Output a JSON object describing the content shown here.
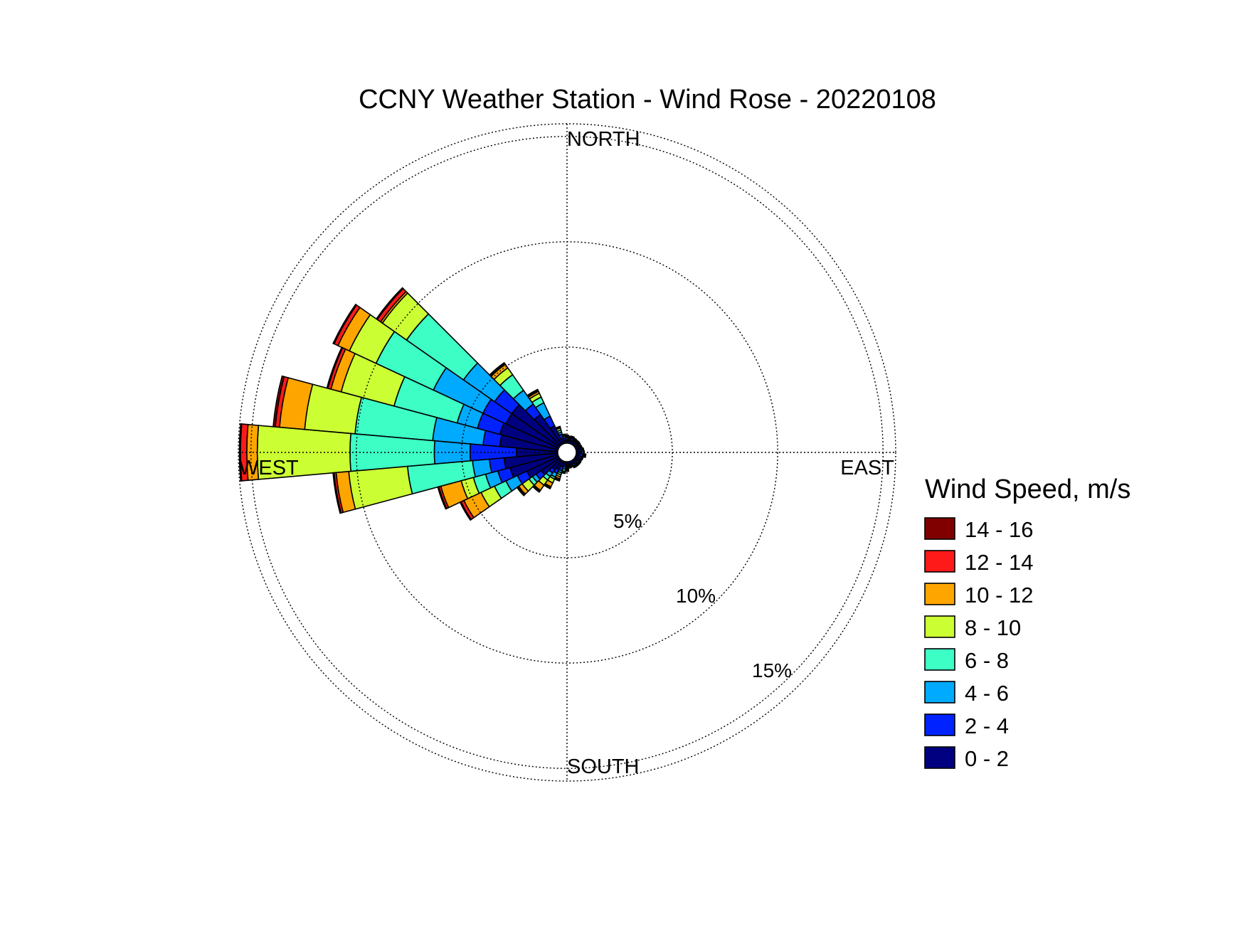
{
  "chart_data": {
    "type": "wind-rose",
    "title": "CCNY Weather Station - Wind Rose - 20220108",
    "direction_labels": {
      "north": "NORTH",
      "south": "SOUTH",
      "east": "EAST",
      "west": "WEST"
    },
    "ring_labels": [
      "5%",
      "10%",
      "15%"
    ],
    "ring_values": [
      5,
      10,
      15
    ],
    "rmax": 15.6,
    "grid": true,
    "legend": {
      "title": "Wind Speed, m/s",
      "placement": "right",
      "bins": [
        {
          "label": "14 - 16",
          "color": "#800000"
        },
        {
          "label": "12 - 14",
          "color": "#ff1a1a"
        },
        {
          "label": "10 - 12",
          "color": "#ffa500"
        },
        {
          "label": "8 - 10",
          "color": "#ccff33"
        },
        {
          "label": "6 - 8",
          "color": "#3dffc6"
        },
        {
          "label": "4 - 6",
          "color": "#00aaff"
        },
        {
          "label": "2 - 4",
          "color": "#0022ff"
        },
        {
          "label": "0 - 2",
          "color": "#000080"
        }
      ]
    },
    "bins_low_to_high": [
      "0 - 2",
      "2 - 4",
      "4 - 6",
      "6 - 8",
      "8 - 10",
      "10 - 12",
      "12 - 14",
      "14 - 16"
    ],
    "sector_width_deg": 10,
    "directions": [
      {
        "dir": 310,
        "cumulative": [
          3.2,
          4.2,
          6.0,
          9.3,
          10.7,
          10.8,
          11.0,
          11.05
        ]
      },
      {
        "dir": 300,
        "cumulative": [
          3.2,
          4.4,
          7.0,
          10.0,
          11.4,
          12.0,
          12.2,
          12.25
        ]
      },
      {
        "dir": 290,
        "cumulative": [
          3.3,
          4.4,
          5.4,
          8.5,
          11.1,
          11.6,
          11.75,
          11.8
        ]
      },
      {
        "dir": 280,
        "cumulative": [
          3.2,
          4.0,
          6.4,
          10.1,
          12.5,
          13.7,
          13.9,
          14.0
        ]
      },
      {
        "dir": 270,
        "cumulative": [
          2.4,
          4.6,
          6.3,
          10.3,
          14.7,
          15.2,
          15.5,
          15.55
        ]
      },
      {
        "dir": 260,
        "cumulative": [
          3.0,
          3.7,
          4.5,
          7.6,
          10.4,
          11.0,
          11.1,
          11.15
        ]
      },
      {
        "dir": 250,
        "cumulative": [
          2.8,
          3.4,
          4.0,
          4.6,
          5.2,
          6.2,
          6.3,
          6.35
        ]
      },
      {
        "dir": 240,
        "cumulative": [
          2.1,
          2.6,
          3.2,
          3.8,
          4.5,
          5.4,
          5.55,
          5.6
        ]
      },
      {
        "dir": 230,
        "cumulative": [
          1.5,
          1.8,
          2.0,
          2.2,
          2.6,
          2.8,
          2.85,
          2.9
        ]
      },
      {
        "dir": 220,
        "cumulative": [
          1.0,
          1.2,
          1.4,
          1.6,
          1.9,
          2.2,
          2.25,
          2.3
        ]
      },
      {
        "dir": 210,
        "cumulative": [
          0.9,
          1.1,
          1.3,
          1.4,
          1.6,
          1.8,
          1.85,
          1.9
        ]
      },
      {
        "dir": 200,
        "cumulative": [
          0.7,
          0.9,
          1.0,
          1.1,
          1.2,
          1.3,
          1.35,
          1.4
        ]
      },
      {
        "dir": 190,
        "cumulative": [
          0.6,
          0.7,
          0.8,
          0.9,
          0.95,
          1.0,
          1.0,
          1.0
        ]
      },
      {
        "dir": 180,
        "cumulative": [
          0.6,
          0.7,
          0.75,
          0.8,
          0.85,
          0.9,
          0.9,
          0.9
        ]
      },
      {
        "dir": 170,
        "cumulative": [
          0.6,
          0.65,
          0.7,
          0.72,
          0.74,
          0.75,
          0.75,
          0.75
        ]
      },
      {
        "dir": 160,
        "cumulative": [
          0.6,
          0.65,
          0.68,
          0.7,
          0.72,
          0.73,
          0.73,
          0.73
        ]
      },
      {
        "dir": 150,
        "cumulative": [
          0.6,
          0.7,
          0.75,
          0.78,
          0.8,
          0.8,
          0.8,
          0.8
        ]
      },
      {
        "dir": 140,
        "cumulative": [
          0.6,
          0.68,
          0.72,
          0.75,
          0.78,
          0.8,
          0.8,
          0.8
        ]
      },
      {
        "dir": 130,
        "cumulative": [
          0.6,
          0.7,
          0.75,
          0.78,
          0.8,
          0.8,
          0.8,
          0.8
        ]
      },
      {
        "dir": 120,
        "cumulative": [
          0.6,
          0.68,
          0.72,
          0.75,
          0.78,
          0.78,
          0.78,
          0.78
        ]
      },
      {
        "dir": 110,
        "cumulative": [
          0.6,
          0.7,
          0.75,
          0.78,
          0.8,
          0.8,
          0.8,
          0.8
        ]
      },
      {
        "dir": 100,
        "cumulative": [
          0.6,
          0.75,
          0.8,
          0.85,
          0.88,
          0.9,
          0.9,
          0.9
        ]
      },
      {
        "dir": 90,
        "cumulative": [
          0.6,
          0.7,
          0.78,
          0.8,
          0.82,
          0.82,
          0.82,
          0.82
        ]
      },
      {
        "dir": 80,
        "cumulative": [
          0.6,
          0.7,
          0.75,
          0.78,
          0.8,
          0.8,
          0.8,
          0.8
        ]
      },
      {
        "dir": 70,
        "cumulative": [
          0.6,
          0.65,
          0.7,
          0.72,
          0.74,
          0.75,
          0.75,
          0.75
        ]
      },
      {
        "dir": 60,
        "cumulative": [
          0.6,
          0.65,
          0.68,
          0.7,
          0.72,
          0.73,
          0.73,
          0.73
        ]
      },
      {
        "dir": 50,
        "cumulative": [
          0.6,
          0.66,
          0.7,
          0.72,
          0.74,
          0.75,
          0.75,
          0.75
        ]
      },
      {
        "dir": 40,
        "cumulative": [
          0.6,
          0.65,
          0.7,
          0.72,
          0.73,
          0.74,
          0.74,
          0.74
        ]
      },
      {
        "dir": 30,
        "cumulative": [
          0.6,
          0.66,
          0.7,
          0.73,
          0.75,
          0.76,
          0.76,
          0.76
        ]
      },
      {
        "dir": 20,
        "cumulative": [
          0.6,
          0.7,
          0.75,
          0.78,
          0.8,
          0.8,
          0.8,
          0.8
        ]
      },
      {
        "dir": 10,
        "cumulative": [
          0.6,
          0.68,
          0.72,
          0.75,
          0.77,
          0.78,
          0.78,
          0.78
        ]
      },
      {
        "dir": 0,
        "cumulative": [
          0.6,
          0.7,
          0.75,
          0.8,
          0.82,
          0.82,
          0.82,
          0.82
        ]
      },
      {
        "dir": 350,
        "cumulative": [
          0.6,
          0.7,
          0.78,
          0.84,
          0.86,
          0.87,
          0.87,
          0.87
        ]
      },
      {
        "dir": 340,
        "cumulative": [
          0.7,
          0.9,
          1.0,
          1.1,
          1.2,
          1.25,
          1.27,
          1.28
        ]
      },
      {
        "dir": 330,
        "cumulative": [
          1.4,
          1.9,
          2.6,
          2.9,
          3.1,
          3.2,
          3.25,
          3.3
        ]
      },
      {
        "dir": 320,
        "cumulative": [
          2.2,
          2.8,
          3.6,
          4.5,
          4.9,
          5.1,
          5.15,
          5.2
        ]
      }
    ]
  }
}
